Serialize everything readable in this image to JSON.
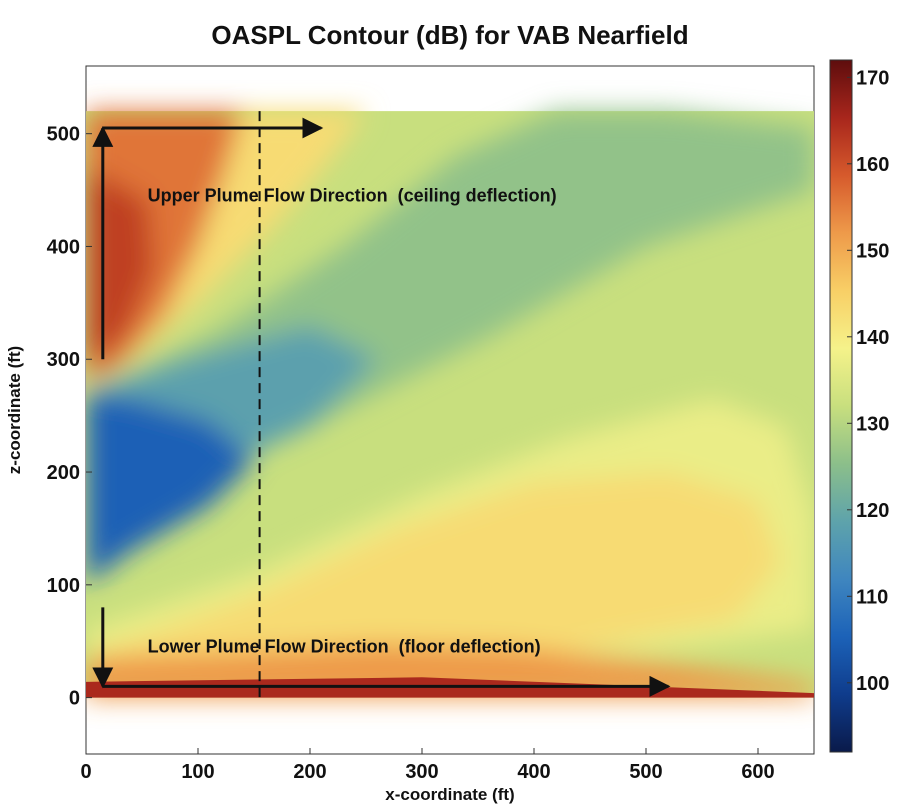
{
  "chart_data": {
    "type": "heatmap",
    "title": "OASPL Contour (dB) for VAB Nearfield",
    "xlabel": "x-coordinate (ft)",
    "ylabel": "z-coordinate (ft)",
    "xlim": [
      0,
      650
    ],
    "ylim": [
      -50,
      560
    ],
    "x_ticks": [
      0,
      100,
      200,
      300,
      400,
      500,
      600
    ],
    "y_ticks": [
      0,
      100,
      200,
      300,
      400,
      500
    ],
    "data_extent": {
      "x": [
        0,
        650
      ],
      "z": [
        0,
        520
      ]
    },
    "colorbar": {
      "min": 92,
      "max": 172,
      "ticks": [
        100,
        110,
        120,
        130,
        140,
        150,
        160,
        170
      ],
      "colormap": [
        "#0a1a4a",
        "#0f3c8c",
        "#1c62b8",
        "#3f86bf",
        "#5ea3ab",
        "#8cbf8a",
        "#c8df7e",
        "#f5f28a",
        "#f8cf66",
        "#ee9a4a",
        "#d65a2c",
        "#a8261c",
        "#5e0d0d"
      ]
    },
    "levels": {
      "background": 132,
      "zones": [
        {
          "name": "ceiling-hot-lobe",
          "value": 156
        },
        {
          "name": "ceiling-core",
          "value": 162
        },
        {
          "name": "upper-plume-front",
          "value": 143
        },
        {
          "name": "upper-diagonal-band",
          "value": 126
        },
        {
          "name": "shadow-region",
          "value": 118
        },
        {
          "name": "shadow-core",
          "value": 105
        },
        {
          "name": "lower-outer-lobe",
          "value": 137
        },
        {
          "name": "lower-plume",
          "value": 143
        },
        {
          "name": "floor-band",
          "value": 152
        },
        {
          "name": "floor-edge",
          "value": 165
        }
      ]
    },
    "reference_line_x": 155,
    "grid": false,
    "annotations": [
      {
        "text": "Upper Plume Flow Direction  (ceiling deflection)",
        "x": 55,
        "z": 440
      },
      {
        "text": "Lower Plume Flow Direction  (floor deflection)",
        "x": 55,
        "z": 40
      }
    ],
    "arrows": [
      {
        "name": "upper-vertical",
        "from": [
          15,
          300
        ],
        "to": [
          15,
          505
        ]
      },
      {
        "name": "upper-horizontal",
        "from": [
          15,
          505
        ],
        "to": [
          210,
          505
        ]
      },
      {
        "name": "lower-vertical",
        "from": [
          15,
          80
        ],
        "to": [
          15,
          10
        ]
      },
      {
        "name": "lower-horizontal",
        "from": [
          15,
          10
        ],
        "to": [
          520,
          10
        ]
      }
    ]
  }
}
